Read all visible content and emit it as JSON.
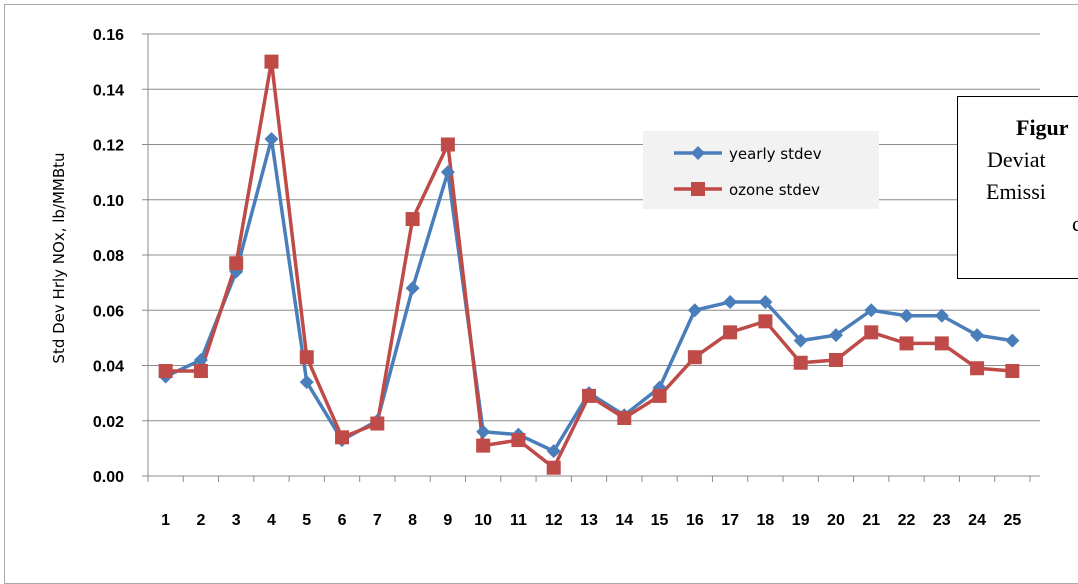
{
  "chart_data": {
    "type": "line",
    "ylabel": "Std Dev Hrly NOx, lb/MMBtu",
    "xlabel": "",
    "ylim": [
      0,
      0.16
    ],
    "yticks": [
      "0.00",
      "0.02",
      "0.04",
      "0.06",
      "0.08",
      "0.10",
      "0.12",
      "0.14",
      "0.16"
    ],
    "categories": [
      "1",
      "2",
      "3",
      "4",
      "5",
      "6",
      "7",
      "8",
      "9",
      "10",
      "11",
      "12",
      "13",
      "14",
      "15",
      "16",
      "17",
      "18",
      "19",
      "20",
      "21",
      "22",
      "23",
      "24",
      "25"
    ],
    "grid": true,
    "legend_position": "upper-center-right",
    "series": [
      {
        "name": "yearly stdev",
        "color": "#4a7ebb",
        "marker": "diamond",
        "values": [
          0.036,
          0.042,
          0.074,
          0.122,
          0.034,
          0.013,
          0.02,
          0.068,
          0.11,
          0.016,
          0.015,
          0.009,
          0.03,
          0.022,
          0.032,
          0.06,
          0.063,
          0.063,
          0.049,
          0.051,
          0.06,
          0.058,
          0.058,
          0.051,
          0.049
        ]
      },
      {
        "name": "ozone stdev",
        "color": "#be4b48",
        "marker": "square",
        "values": [
          0.038,
          0.038,
          0.077,
          0.15,
          0.043,
          0.014,
          0.019,
          0.093,
          0.12,
          0.011,
          0.013,
          0.003,
          0.029,
          0.021,
          0.029,
          0.043,
          0.052,
          0.056,
          0.041,
          0.042,
          0.052,
          0.048,
          0.048,
          0.039,
          0.038
        ]
      }
    ]
  },
  "caption": {
    "line1": "Figur",
    "line2": "Deviat",
    "line3": "Emissi",
    "line4": "c"
  }
}
